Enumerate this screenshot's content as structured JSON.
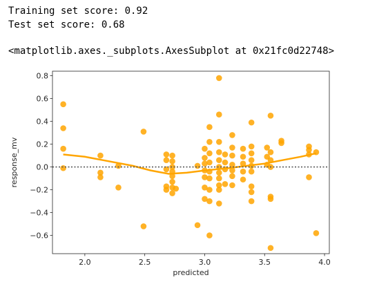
{
  "output": {
    "train_score": "Training set score: 0.92",
    "test_score": "Test set score: 0.68",
    "repr": "<matplotlib.axes._subplots.AxesSubplot at 0x21fc0d22748>"
  },
  "chart_data": {
    "type": "scatter",
    "xlabel": "predicted",
    "ylabel": "response_mv",
    "xlim": [
      1.73,
      4.04
    ],
    "ylim": [
      -0.76,
      0.84
    ],
    "xticks": [
      2.0,
      2.5,
      3.0,
      3.5,
      4.0
    ],
    "xtick_labels": [
      "2.0",
      "2.5",
      "3.0",
      "3.5",
      "4.0"
    ],
    "yticks": [
      -0.6,
      -0.4,
      -0.2,
      0.0,
      0.2,
      0.4,
      0.6,
      0.8
    ],
    "ytick_labels": [
      "−0.6",
      "−0.4",
      "−0.2",
      "0.0",
      "0.2",
      "0.4",
      "0.6",
      "0.8"
    ],
    "grid": false,
    "reference_line_y": 0.0,
    "colors": {
      "points": "#FFA500",
      "trend": "#FFA500",
      "reference": "#555555"
    },
    "points": [
      [
        1.82,
        0.55
      ],
      [
        1.82,
        0.34
      ],
      [
        1.82,
        0.16
      ],
      [
        1.82,
        -0.01
      ],
      [
        2.13,
        0.1
      ],
      [
        2.13,
        -0.05
      ],
      [
        2.13,
        -0.09
      ],
      [
        2.28,
        0.01
      ],
      [
        2.28,
        -0.18
      ],
      [
        2.49,
        0.31
      ],
      [
        2.49,
        -0.52
      ],
      [
        2.68,
        0.11
      ],
      [
        2.68,
        0.06
      ],
      [
        2.68,
        -0.02
      ],
      [
        2.68,
        -0.17
      ],
      [
        2.68,
        -0.2
      ],
      [
        2.73,
        0.1
      ],
      [
        2.73,
        0.05
      ],
      [
        2.73,
        0.0
      ],
      [
        2.73,
        -0.04
      ],
      [
        2.73,
        -0.08
      ],
      [
        2.73,
        -0.13
      ],
      [
        2.73,
        -0.18
      ],
      [
        2.73,
        -0.23
      ],
      [
        2.76,
        -0.19
      ],
      [
        2.94,
        0.01
      ],
      [
        2.94,
        -0.51
      ],
      [
        3.0,
        0.16
      ],
      [
        3.0,
        0.08
      ],
      [
        3.0,
        0.03
      ],
      [
        3.0,
        -0.03
      ],
      [
        3.0,
        -0.09
      ],
      [
        3.0,
        -0.18
      ],
      [
        3.0,
        -0.28
      ],
      [
        3.04,
        0.35
      ],
      [
        3.04,
        0.22
      ],
      [
        3.04,
        0.12
      ],
      [
        3.04,
        0.04
      ],
      [
        3.04,
        -0.04
      ],
      [
        3.04,
        -0.1
      ],
      [
        3.04,
        -0.2
      ],
      [
        3.04,
        -0.3
      ],
      [
        3.04,
        -0.6
      ],
      [
        3.12,
        0.78
      ],
      [
        3.12,
        0.46
      ],
      [
        3.12,
        0.22
      ],
      [
        3.12,
        0.13
      ],
      [
        3.12,
        0.06
      ],
      [
        3.12,
        0.0
      ],
      [
        3.12,
        -0.05
      ],
      [
        3.12,
        -0.1
      ],
      [
        3.12,
        -0.16
      ],
      [
        3.12,
        -0.2
      ],
      [
        3.12,
        -0.32
      ],
      [
        3.17,
        0.11
      ],
      [
        3.17,
        0.04
      ],
      [
        3.17,
        -0.02
      ],
      [
        3.17,
        -0.15
      ],
      [
        3.23,
        0.28
      ],
      [
        3.23,
        0.17
      ],
      [
        3.23,
        0.1
      ],
      [
        3.23,
        0.02
      ],
      [
        3.23,
        -0.03
      ],
      [
        3.23,
        -0.08
      ],
      [
        3.23,
        -0.16
      ],
      [
        3.32,
        0.16
      ],
      [
        3.32,
        0.09
      ],
      [
        3.32,
        0.03
      ],
      [
        3.32,
        -0.04
      ],
      [
        3.32,
        -0.11
      ],
      [
        3.39,
        0.39
      ],
      [
        3.39,
        0.18
      ],
      [
        3.39,
        0.12
      ],
      [
        3.39,
        0.06
      ],
      [
        3.39,
        0.01
      ],
      [
        3.39,
        -0.04
      ],
      [
        3.39,
        -0.17
      ],
      [
        3.39,
        -0.22
      ],
      [
        3.39,
        -0.3
      ],
      [
        3.52,
        0.17
      ],
      [
        3.52,
        0.09
      ],
      [
        3.52,
        0.02
      ],
      [
        3.55,
        0.45
      ],
      [
        3.55,
        0.13
      ],
      [
        3.55,
        0.06
      ],
      [
        3.55,
        0.0
      ],
      [
        3.55,
        -0.26
      ],
      [
        3.55,
        -0.28
      ],
      [
        3.55,
        -0.71
      ],
      [
        3.64,
        0.23
      ],
      [
        3.64,
        0.21
      ],
      [
        3.87,
        0.18
      ],
      [
        3.87,
        0.15
      ],
      [
        3.87,
        0.11
      ],
      [
        3.87,
        -0.09
      ],
      [
        3.93,
        0.13
      ],
      [
        3.93,
        -0.58
      ]
    ],
    "trend": [
      [
        1.82,
        0.11
      ],
      [
        2.0,
        0.09
      ],
      [
        2.2,
        0.05
      ],
      [
        2.4,
        0.01
      ],
      [
        2.55,
        -0.03
      ],
      [
        2.7,
        -0.06
      ],
      [
        2.85,
        -0.05
      ],
      [
        3.0,
        -0.03
      ],
      [
        3.1,
        -0.02
      ],
      [
        3.2,
        -0.01
      ],
      [
        3.35,
        0.01
      ],
      [
        3.5,
        0.03
      ],
      [
        3.65,
        0.06
      ],
      [
        3.8,
        0.09
      ],
      [
        3.93,
        0.12
      ]
    ]
  }
}
